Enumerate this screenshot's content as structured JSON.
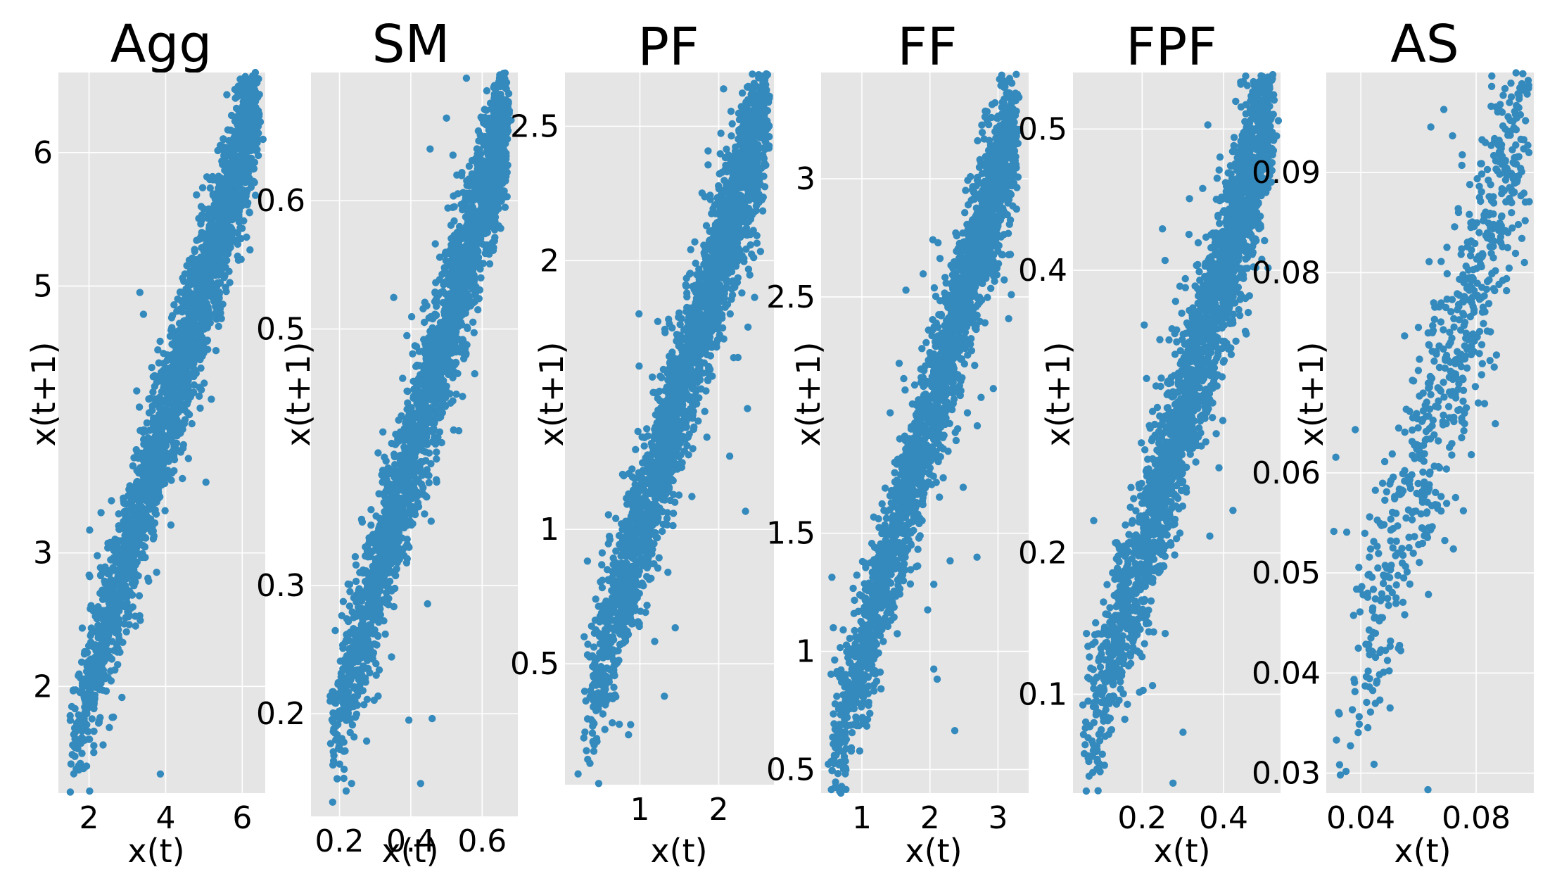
{
  "figure": {
    "background": "#ffffff",
    "plot_background": "#e5e5e5",
    "grid_color": "#ffffff",
    "point_color": "#348abd"
  },
  "chart_data": [
    {
      "type": "scatter",
      "title": "Agg",
      "xlabel": "x(t)",
      "ylabel": "x(t+1)",
      "xlim": [
        1.2,
        6.6
      ],
      "ylim": [
        1.2,
        6.6
      ],
      "xticks": [
        2,
        4,
        6
      ],
      "yticks": [
        2,
        3,
        5,
        6
      ],
      "grid": true,
      "distribution": {
        "x_range": [
          1.5,
          6.4
        ],
        "spread": 0.26,
        "n_points": 2500,
        "outlier_rate": 0.02
      }
    },
    {
      "type": "scatter",
      "title": "SM",
      "xlabel": "x(t)",
      "ylabel": "x(t+1)",
      "xlim": [
        0.12,
        0.7
      ],
      "ylim": [
        0.12,
        0.7
      ],
      "xticks": [
        0.2,
        0.4,
        0.6
      ],
      "yticks": [
        0.2,
        0.3,
        0.5,
        0.6
      ],
      "grid": true,
      "distribution": {
        "x_range": [
          0.17,
          0.67
        ],
        "spread": 0.03,
        "n_points": 2500,
        "outlier_rate": 0.02
      }
    },
    {
      "type": "scatter",
      "title": "PF",
      "xlabel": "x(t)",
      "ylabel": "x(t+1)",
      "xlim": [
        0.05,
        2.7
      ],
      "ylim": [
        0.05,
        2.7
      ],
      "xticks": [
        1,
        2
      ],
      "yticks": [
        0.5,
        1,
        2,
        2.5
      ],
      "grid": true,
      "distribution": {
        "x_range": [
          0.3,
          2.6
        ],
        "spread": 0.14,
        "n_points": 2500,
        "outlier_rate": 0.03
      }
    },
    {
      "type": "scatter",
      "title": "FF",
      "xlabel": "x(t)",
      "ylabel": "x(t+1)",
      "xlim": [
        0.4,
        3.45
      ],
      "ylim": [
        0.4,
        3.45
      ],
      "xticks": [
        1,
        2,
        3
      ],
      "yticks": [
        0.5,
        1,
        1.5,
        2.5,
        3
      ],
      "grid": true,
      "distribution": {
        "x_range": [
          0.55,
          3.25
        ],
        "spread": 0.15,
        "n_points": 2500,
        "outlier_rate": 0.03
      }
    },
    {
      "type": "scatter",
      "title": "FPF",
      "xlabel": "x(t)",
      "ylabel": "x(t+1)",
      "xlim": [
        0.03,
        0.54
      ],
      "ylim": [
        0.03,
        0.54
      ],
      "xticks": [
        0.2,
        0.4
      ],
      "yticks": [
        0.1,
        0.2,
        0.4,
        0.5
      ],
      "grid": true,
      "distribution": {
        "x_range": [
          0.06,
          0.52
        ],
        "spread": 0.03,
        "n_points": 2500,
        "outlier_rate": 0.02
      }
    },
    {
      "type": "scatter",
      "title": "AS",
      "xlabel": "x(t)",
      "ylabel": "x(t+1)",
      "xlim": [
        0.028,
        0.1
      ],
      "ylim": [
        0.028,
        0.1
      ],
      "xticks": [
        0.04,
        0.08
      ],
      "yticks": [
        0.03,
        0.04,
        0.05,
        0.06,
        0.08,
        0.09
      ],
      "grid": true,
      "distribution": {
        "x_range": [
          0.031,
          0.098
        ],
        "spread": 0.006,
        "n_points": 700,
        "outlier_rate": 0.05
      }
    }
  ]
}
